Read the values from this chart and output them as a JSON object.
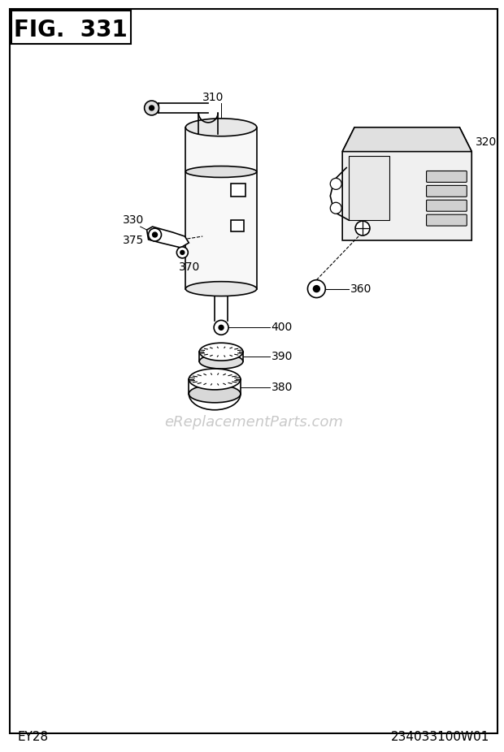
{
  "title": "FIG.  331",
  "bottom_left": "EY28",
  "bottom_right": "234033100W01",
  "watermark": "eReplacementParts.com",
  "bg_color": "#ffffff",
  "label_310": "310",
  "label_320": "320",
  "label_330": "330",
  "label_375": "375",
  "label_370": "370",
  "label_400": "400",
  "label_390": "390",
  "label_380": "380",
  "label_360": "360"
}
